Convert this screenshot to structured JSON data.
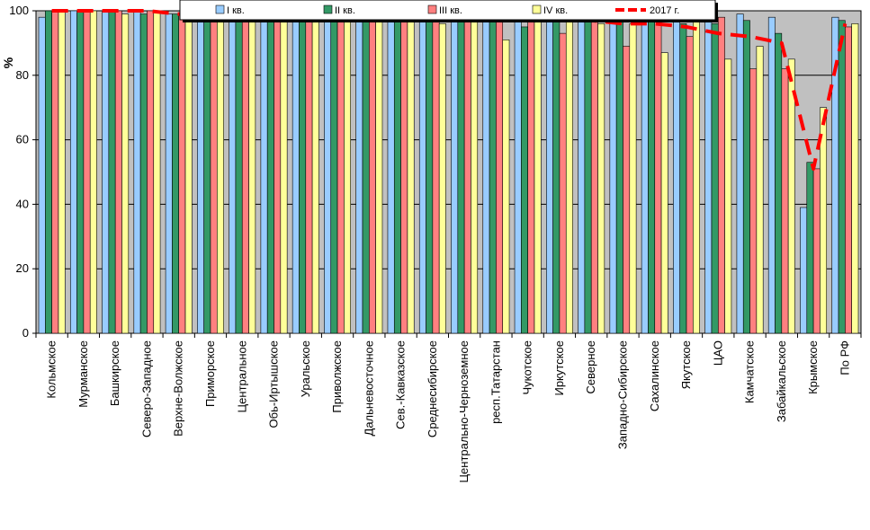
{
  "chart_data": {
    "type": "bar",
    "ylabel": "%",
    "ylim": [
      0,
      100
    ],
    "yticks": [
      "0",
      "20",
      "40",
      "60",
      "80",
      "100"
    ],
    "grid": "horizontal",
    "legend_position": "top",
    "categories": [
      "Кольмское",
      "Мурманское",
      "Башкирское",
      "Северо-Западное",
      "Верхне-Волжское",
      "Приморское",
      "Центральное",
      "Обь-Иртышское",
      "Уральское",
      "Приволжское",
      "Дальневосточное",
      "Сев.-Кавказское",
      "Среднесибирское",
      "Центрально-Черноземное",
      "респ.Татарстан",
      "Чукотское",
      "Иркутское",
      "Северное",
      "Западно-Сибирское",
      "Сахалинское",
      "Якутское",
      "ЦАО",
      "Камчатское",
      "Забайкальское",
      "Крымское",
      "По РФ"
    ],
    "series": [
      {
        "name": "I кв.",
        "color": "#99ccff",
        "values": [
          98,
          100,
          100,
          100,
          99,
          100,
          100,
          98,
          100,
          97,
          98,
          98,
          99,
          99,
          98,
          98,
          97,
          98,
          98,
          99,
          97,
          97,
          99,
          98,
          39,
          98
        ]
      },
      {
        "name": "II кв.",
        "color": "#339966",
        "values": [
          100,
          100,
          100,
          99,
          99,
          98,
          98,
          100,
          99,
          98,
          99,
          97,
          99,
          97,
          97,
          95,
          98,
          98,
          99,
          99,
          96,
          96,
          97,
          93,
          53,
          97
        ]
      },
      {
        "name": "III кв.",
        "color": "#ff8080",
        "values": [
          100,
          100,
          100,
          100,
          99,
          99,
          99,
          99,
          99,
          99,
          98,
          98,
          99,
          98,
          98,
          99,
          93,
          99,
          89,
          100,
          92,
          98,
          82,
          82,
          51,
          95
        ]
      },
      {
        "name": "IV кв.",
        "color": "#ffff99",
        "values": [
          100,
          100,
          99,
          100,
          99,
          98,
          99,
          100,
          99,
          99,
          98,
          98,
          96,
          99,
          91,
          98,
          98,
          96,
          96,
          87,
          97,
          85,
          89,
          85,
          70,
          96
        ]
      },
      {
        "name": "2017 г.",
        "color": "#ff0000",
        "type": "line",
        "values": [
          100,
          100,
          100,
          100,
          99,
          99,
          99,
          99,
          99,
          98,
          98,
          98,
          98,
          98,
          97,
          97,
          97,
          97,
          96,
          96,
          95,
          93,
          92,
          90,
          51,
          96
        ]
      }
    ]
  }
}
